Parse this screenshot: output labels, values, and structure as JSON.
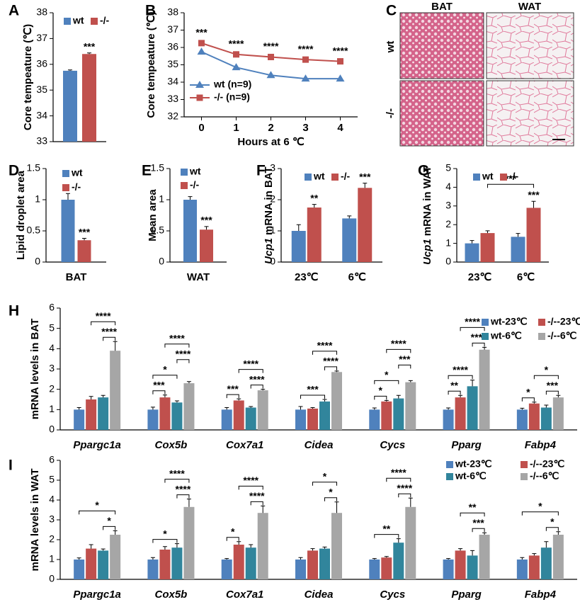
{
  "panel_c": {
    "panel": "C",
    "columns": [
      "BAT",
      "WAT"
    ],
    "rows": [
      "wt",
      "-/-"
    ]
  },
  "chart_data": [
    {
      "panel": "A",
      "type": "bar",
      "ylabel": "Core tempeature (℃)",
      "categories": [
        null
      ],
      "ylim": [
        33,
        38
      ],
      "yticks": [
        33,
        34,
        35,
        36,
        37,
        38
      ],
      "series": [
        {
          "name": "wt",
          "color": "#4f81bd",
          "values": [
            35.75
          ],
          "errors": [
            0.03
          ]
        },
        {
          "name": "-/-",
          "color": "#c0504d",
          "values": [
            36.4
          ],
          "errors": [
            0.04
          ]
        }
      ],
      "annotations": [
        {
          "label": "***",
          "series": 1,
          "category": 0
        }
      ]
    },
    {
      "panel": "B",
      "type": "line",
      "ylabel": "Core tempeature (℃)",
      "xlabel": "Hours at 6 ℃",
      "x": [
        0,
        1,
        2,
        3,
        4
      ],
      "xlim": [
        -0.5,
        4.5
      ],
      "xticks": [
        0,
        1,
        2,
        3,
        4
      ],
      "ylim": [
        32,
        38
      ],
      "yticks": [
        32,
        33,
        34,
        35,
        36,
        37,
        38
      ],
      "series": [
        {
          "name": "wt (n=9)",
          "color": "#4f81bd",
          "marker": "triangle",
          "values": [
            35.75,
            34.85,
            34.4,
            34.2,
            34.2
          ]
        },
        {
          "name": "-/- (n=9)",
          "color": "#c0504d",
          "marker": "square",
          "values": [
            36.25,
            35.6,
            35.45,
            35.3,
            35.2
          ]
        }
      ],
      "annotations": [
        "***",
        "****",
        "****",
        "****",
        "****"
      ]
    },
    {
      "panel": "D",
      "type": "bar",
      "ylabel": "Lipid droplet area",
      "categories": [
        "BAT"
      ],
      "ylim": [
        0,
        1.5
      ],
      "yticks": [
        0,
        0.5,
        1,
        1.5
      ],
      "series": [
        {
          "name": "wt",
          "color": "#4f81bd",
          "values": [
            1.0
          ],
          "errors": [
            0.1
          ]
        },
        {
          "name": "-/-",
          "color": "#c0504d",
          "values": [
            0.35
          ],
          "errors": [
            0.03
          ]
        }
      ],
      "annotations": [
        {
          "label": "***",
          "series": 1,
          "category": 0
        }
      ]
    },
    {
      "panel": "E",
      "type": "bar",
      "ylabel": "Mean area",
      "categories": [
        "WAT"
      ],
      "ylim": [
        0,
        1.5
      ],
      "yticks": [
        0,
        0.5,
        1,
        1.5
      ],
      "series": [
        {
          "name": "wt",
          "color": "#4f81bd",
          "values": [
            1.0
          ],
          "errors": [
            0.05
          ]
        },
        {
          "name": "-/-",
          "color": "#c0504d",
          "values": [
            0.52
          ],
          "errors": [
            0.05
          ]
        }
      ],
      "annotations": [
        {
          "label": "***",
          "series": 1,
          "category": 0
        }
      ]
    },
    {
      "panel": "F",
      "type": "bar",
      "ylabel": {
        "italic": "Ucp1",
        "text": "mRNA in BAT"
      },
      "categories": [
        "23℃",
        "6℃"
      ],
      "ylim": [
        0,
        3
      ],
      "yticks": [
        0,
        1,
        2,
        3
      ],
      "series": [
        {
          "name": "wt",
          "color": "#4f81bd",
          "values": [
            1.0,
            1.4
          ],
          "errors": [
            0.2,
            0.08
          ]
        },
        {
          "name": "-/-",
          "color": "#c0504d",
          "values": [
            1.75,
            2.38
          ],
          "errors": [
            0.1,
            0.15
          ]
        }
      ],
      "annotations": [
        {
          "label": "**",
          "series": 1,
          "category": 0
        },
        {
          "label": "***",
          "series": 1,
          "category": 1
        }
      ]
    },
    {
      "panel": "G",
      "type": "bar",
      "ylabel": {
        "italic": "Ucp1",
        "text": "mRNA in WAT"
      },
      "categories": [
        "23℃",
        "6℃"
      ],
      "ylim": [
        0,
        5
      ],
      "yticks": [
        0,
        1,
        2,
        3,
        4,
        5
      ],
      "series": [
        {
          "name": "wt",
          "color": "#4f81bd",
          "values": [
            1.0,
            1.35
          ],
          "errors": [
            0.15,
            0.18
          ]
        },
        {
          "name": "-/-",
          "color": "#c0504d",
          "values": [
            1.55,
            2.9
          ],
          "errors": [
            0.12,
            0.35
          ]
        }
      ],
      "annotations": [
        {
          "label": "***",
          "series": 1,
          "category": 1
        }
      ],
      "brackets": [
        {
          "label": "***",
          "between": [
            [
              1,
              0
            ],
            [
              1,
              1
            ]
          ]
        }
      ]
    },
    {
      "panel": "H",
      "type": "bar",
      "ylabel": "mRNA levels in BAT",
      "categories": [
        "Ppargc1a",
        "Cox5b",
        "Cox7a1",
        "Cidea",
        "Cycs",
        "Pparg",
        "Fabp4"
      ],
      "ylim": [
        0,
        6
      ],
      "yticks": [
        0,
        1,
        2,
        3,
        4,
        5,
        6
      ],
      "series": [
        {
          "name": "wt-23℃",
          "color": "#4f81bd",
          "values": [
            1.0,
            1.0,
            1.0,
            1.0,
            1.0,
            1.0,
            1.0
          ],
          "errors": [
            0.1,
            0.12,
            0.1,
            0.15,
            0.08,
            0.08,
            0.07
          ]
        },
        {
          "name": "-/--23℃",
          "color": "#c0504d",
          "values": [
            1.5,
            1.6,
            1.45,
            1.05,
            1.4,
            1.6,
            1.3
          ],
          "errors": [
            0.15,
            0.12,
            0.08,
            0.05,
            0.05,
            0.1,
            0.07
          ]
        },
        {
          "name": "wt-6℃",
          "color": "#31859c",
          "values": [
            1.6,
            1.35,
            1.1,
            1.4,
            1.55,
            2.15,
            1.1
          ],
          "errors": [
            0.1,
            0.08,
            0.05,
            0.1,
            0.15,
            0.3,
            0.12
          ]
        },
        {
          "name": "-/--6℃",
          "color": "#a6a6a6",
          "values": [
            3.9,
            2.3,
            1.95,
            2.85,
            2.35,
            3.95,
            1.6
          ],
          "errors": [
            0.45,
            0.08,
            0.05,
            0.05,
            0.08,
            0.12,
            0.1
          ]
        }
      ],
      "brackets": [
        {
          "label": "****",
          "between": [
            [
              2,
              0
            ],
            [
              3,
              0
            ]
          ]
        },
        {
          "label": "****",
          "between": [
            [
              1,
              0
            ],
            [
              3,
              0
            ]
          ]
        },
        {
          "label": "***",
          "between": [
            [
              0,
              1
            ],
            [
              1,
              1
            ]
          ]
        },
        {
          "label": "*",
          "between": [
            [
              0,
              1
            ],
            [
              2,
              1
            ]
          ]
        },
        {
          "label": "****",
          "between": [
            [
              2,
              1
            ],
            [
              3,
              1
            ]
          ]
        },
        {
          "label": "****",
          "between": [
            [
              1,
              1
            ],
            [
              3,
              1
            ]
          ]
        },
        {
          "label": "***",
          "between": [
            [
              0,
              2
            ],
            [
              1,
              2
            ]
          ]
        },
        {
          "label": "****",
          "between": [
            [
              2,
              2
            ],
            [
              3,
              2
            ]
          ]
        },
        {
          "label": "****",
          "between": [
            [
              1,
              2
            ],
            [
              3,
              2
            ]
          ]
        },
        {
          "label": "***",
          "between": [
            [
              0,
              3
            ],
            [
              2,
              3
            ]
          ]
        },
        {
          "label": "****",
          "between": [
            [
              2,
              3
            ],
            [
              3,
              3
            ]
          ]
        },
        {
          "label": "****",
          "between": [
            [
              1,
              3
            ],
            [
              3,
              3
            ]
          ]
        },
        {
          "label": "*",
          "between": [
            [
              0,
              4
            ],
            [
              1,
              4
            ]
          ]
        },
        {
          "label": "*",
          "between": [
            [
              0,
              4
            ],
            [
              2,
              4
            ]
          ]
        },
        {
          "label": "***",
          "between": [
            [
              2,
              4
            ],
            [
              3,
              4
            ]
          ]
        },
        {
          "label": "****",
          "between": [
            [
              1,
              4
            ],
            [
              3,
              4
            ]
          ]
        },
        {
          "label": "**",
          "between": [
            [
              0,
              5
            ],
            [
              1,
              5
            ]
          ]
        },
        {
          "label": "****",
          "between": [
            [
              0,
              5
            ],
            [
              2,
              5
            ]
          ]
        },
        {
          "label": "****",
          "between": [
            [
              2,
              5
            ],
            [
              3,
              5
            ]
          ]
        },
        {
          "label": "****",
          "between": [
            [
              1,
              5
            ],
            [
              3,
              5
            ]
          ]
        },
        {
          "label": "*",
          "between": [
            [
              0,
              6
            ],
            [
              1,
              6
            ]
          ]
        },
        {
          "label": "***",
          "between": [
            [
              2,
              6
            ],
            [
              3,
              6
            ]
          ]
        },
        {
          "label": "*",
          "between": [
            [
              1,
              6
            ],
            [
              3,
              6
            ]
          ]
        }
      ]
    },
    {
      "panel": "I",
      "type": "bar",
      "ylabel": "mRNA levels in WAT",
      "categories": [
        "Ppargc1a",
        "Cox5b",
        "Cox7a1",
        "Cidea",
        "Cycs",
        "Pparg",
        "Fabp4"
      ],
      "ylim": [
        0,
        6
      ],
      "yticks": [
        0,
        1,
        2,
        3,
        4,
        5,
        6
      ],
      "series": [
        {
          "name": "wt-23℃",
          "color": "#4f81bd",
          "values": [
            1.0,
            1.0,
            1.0,
            1.0,
            1.0,
            1.0,
            1.0
          ],
          "errors": [
            0.08,
            0.1,
            0.05,
            0.1,
            0.05,
            0.05,
            0.1
          ]
        },
        {
          "name": "-/--23℃",
          "color": "#c0504d",
          "values": [
            1.55,
            1.5,
            1.75,
            1.45,
            1.1,
            1.45,
            1.2
          ],
          "errors": [
            0.2,
            0.15,
            0.15,
            0.1,
            0.05,
            0.1,
            0.1
          ]
        },
        {
          "name": "wt-6℃",
          "color": "#31859c",
          "values": [
            1.45,
            1.6,
            1.6,
            1.55,
            1.85,
            1.2,
            1.6
          ],
          "errors": [
            0.08,
            0.2,
            0.15,
            0.08,
            0.2,
            0.25,
            0.3
          ]
        },
        {
          "name": "-/--6℃",
          "color": "#a6a6a6",
          "values": [
            2.25,
            3.65,
            3.35,
            3.35,
            3.65,
            2.25,
            2.25
          ],
          "errors": [
            0.2,
            0.4,
            0.35,
            0.55,
            0.45,
            0.1,
            0.15
          ]
        }
      ],
      "brackets": [
        {
          "label": "*",
          "between": [
            [
              2,
              0
            ],
            [
              3,
              0
            ]
          ]
        },
        {
          "label": "*",
          "between": [
            [
              0,
              0
            ],
            [
              3,
              0
            ]
          ]
        },
        {
          "label": "*",
          "between": [
            [
              0,
              1
            ],
            [
              2,
              1
            ]
          ]
        },
        {
          "label": "****",
          "between": [
            [
              2,
              1
            ],
            [
              3,
              1
            ]
          ]
        },
        {
          "label": "****",
          "between": [
            [
              1,
              1
            ],
            [
              3,
              1
            ]
          ]
        },
        {
          "label": "*",
          "between": [
            [
              0,
              2
            ],
            [
              1,
              2
            ]
          ]
        },
        {
          "label": "****",
          "between": [
            [
              2,
              2
            ],
            [
              3,
              2
            ]
          ]
        },
        {
          "label": "****",
          "between": [
            [
              1,
              2
            ],
            [
              3,
              2
            ]
          ]
        },
        {
          "label": "*",
          "between": [
            [
              2,
              3
            ],
            [
              3,
              3
            ]
          ]
        },
        {
          "label": "*",
          "between": [
            [
              1,
              3
            ],
            [
              3,
              3
            ]
          ]
        },
        {
          "label": "**",
          "between": [
            [
              0,
              4
            ],
            [
              2,
              4
            ]
          ]
        },
        {
          "label": "****",
          "between": [
            [
              2,
              4
            ],
            [
              3,
              4
            ]
          ]
        },
        {
          "label": "****",
          "between": [
            [
              1,
              4
            ],
            [
              3,
              4
            ]
          ]
        },
        {
          "label": "***",
          "between": [
            [
              2,
              5
            ],
            [
              3,
              5
            ]
          ]
        },
        {
          "label": "**",
          "between": [
            [
              1,
              5
            ],
            [
              3,
              5
            ]
          ]
        },
        {
          "label": "*",
          "between": [
            [
              2,
              6
            ],
            [
              3,
              6
            ]
          ]
        },
        {
          "label": "*",
          "between": [
            [
              0,
              6
            ],
            [
              3,
              6
            ]
          ]
        }
      ]
    }
  ]
}
